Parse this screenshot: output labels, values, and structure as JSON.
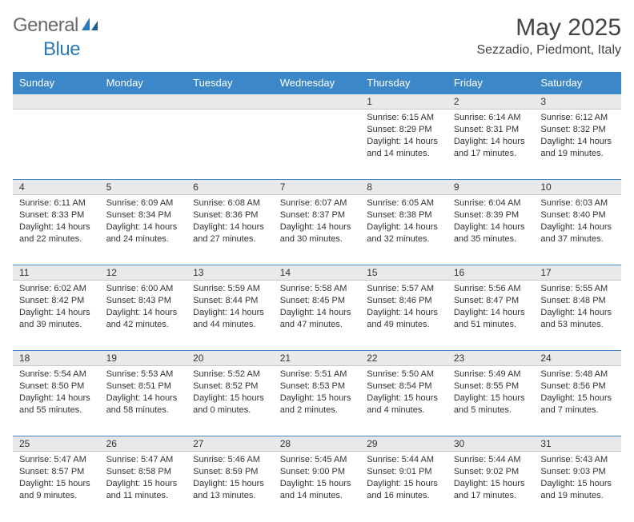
{
  "logo": {
    "text1": "General",
    "text2": "Blue"
  },
  "title": "May 2025",
  "location": "Sezzadio, Piedmont, Italy",
  "dayHeaders": [
    "Sunday",
    "Monday",
    "Tuesday",
    "Wednesday",
    "Thursday",
    "Friday",
    "Saturday"
  ],
  "colors": {
    "headerBg": "#3b87c8",
    "headerText": "#ffffff",
    "dayNumBg": "#e8e9ea",
    "border": "#3b87c8",
    "text": "#333333",
    "titleText": "#444444",
    "logoGray": "#6a6a6a",
    "logoBlue": "#2a7ab9"
  },
  "weeks": [
    [
      {
        "num": "",
        "lines": []
      },
      {
        "num": "",
        "lines": []
      },
      {
        "num": "",
        "lines": []
      },
      {
        "num": "",
        "lines": []
      },
      {
        "num": "1",
        "lines": [
          "Sunrise: 6:15 AM",
          "Sunset: 8:29 PM",
          "Daylight: 14 hours",
          "and 14 minutes."
        ]
      },
      {
        "num": "2",
        "lines": [
          "Sunrise: 6:14 AM",
          "Sunset: 8:31 PM",
          "Daylight: 14 hours",
          "and 17 minutes."
        ]
      },
      {
        "num": "3",
        "lines": [
          "Sunrise: 6:12 AM",
          "Sunset: 8:32 PM",
          "Daylight: 14 hours",
          "and 19 minutes."
        ]
      }
    ],
    [
      {
        "num": "4",
        "lines": [
          "Sunrise: 6:11 AM",
          "Sunset: 8:33 PM",
          "Daylight: 14 hours",
          "and 22 minutes."
        ]
      },
      {
        "num": "5",
        "lines": [
          "Sunrise: 6:09 AM",
          "Sunset: 8:34 PM",
          "Daylight: 14 hours",
          "and 24 minutes."
        ]
      },
      {
        "num": "6",
        "lines": [
          "Sunrise: 6:08 AM",
          "Sunset: 8:36 PM",
          "Daylight: 14 hours",
          "and 27 minutes."
        ]
      },
      {
        "num": "7",
        "lines": [
          "Sunrise: 6:07 AM",
          "Sunset: 8:37 PM",
          "Daylight: 14 hours",
          "and 30 minutes."
        ]
      },
      {
        "num": "8",
        "lines": [
          "Sunrise: 6:05 AM",
          "Sunset: 8:38 PM",
          "Daylight: 14 hours",
          "and 32 minutes."
        ]
      },
      {
        "num": "9",
        "lines": [
          "Sunrise: 6:04 AM",
          "Sunset: 8:39 PM",
          "Daylight: 14 hours",
          "and 35 minutes."
        ]
      },
      {
        "num": "10",
        "lines": [
          "Sunrise: 6:03 AM",
          "Sunset: 8:40 PM",
          "Daylight: 14 hours",
          "and 37 minutes."
        ]
      }
    ],
    [
      {
        "num": "11",
        "lines": [
          "Sunrise: 6:02 AM",
          "Sunset: 8:42 PM",
          "Daylight: 14 hours",
          "and 39 minutes."
        ]
      },
      {
        "num": "12",
        "lines": [
          "Sunrise: 6:00 AM",
          "Sunset: 8:43 PM",
          "Daylight: 14 hours",
          "and 42 minutes."
        ]
      },
      {
        "num": "13",
        "lines": [
          "Sunrise: 5:59 AM",
          "Sunset: 8:44 PM",
          "Daylight: 14 hours",
          "and 44 minutes."
        ]
      },
      {
        "num": "14",
        "lines": [
          "Sunrise: 5:58 AM",
          "Sunset: 8:45 PM",
          "Daylight: 14 hours",
          "and 47 minutes."
        ]
      },
      {
        "num": "15",
        "lines": [
          "Sunrise: 5:57 AM",
          "Sunset: 8:46 PM",
          "Daylight: 14 hours",
          "and 49 minutes."
        ]
      },
      {
        "num": "16",
        "lines": [
          "Sunrise: 5:56 AM",
          "Sunset: 8:47 PM",
          "Daylight: 14 hours",
          "and 51 minutes."
        ]
      },
      {
        "num": "17",
        "lines": [
          "Sunrise: 5:55 AM",
          "Sunset: 8:48 PM",
          "Daylight: 14 hours",
          "and 53 minutes."
        ]
      }
    ],
    [
      {
        "num": "18",
        "lines": [
          "Sunrise: 5:54 AM",
          "Sunset: 8:50 PM",
          "Daylight: 14 hours",
          "and 55 minutes."
        ]
      },
      {
        "num": "19",
        "lines": [
          "Sunrise: 5:53 AM",
          "Sunset: 8:51 PM",
          "Daylight: 14 hours",
          "and 58 minutes."
        ]
      },
      {
        "num": "20",
        "lines": [
          "Sunrise: 5:52 AM",
          "Sunset: 8:52 PM",
          "Daylight: 15 hours",
          "and 0 minutes."
        ]
      },
      {
        "num": "21",
        "lines": [
          "Sunrise: 5:51 AM",
          "Sunset: 8:53 PM",
          "Daylight: 15 hours",
          "and 2 minutes."
        ]
      },
      {
        "num": "22",
        "lines": [
          "Sunrise: 5:50 AM",
          "Sunset: 8:54 PM",
          "Daylight: 15 hours",
          "and 4 minutes."
        ]
      },
      {
        "num": "23",
        "lines": [
          "Sunrise: 5:49 AM",
          "Sunset: 8:55 PM",
          "Daylight: 15 hours",
          "and 5 minutes."
        ]
      },
      {
        "num": "24",
        "lines": [
          "Sunrise: 5:48 AM",
          "Sunset: 8:56 PM",
          "Daylight: 15 hours",
          "and 7 minutes."
        ]
      }
    ],
    [
      {
        "num": "25",
        "lines": [
          "Sunrise: 5:47 AM",
          "Sunset: 8:57 PM",
          "Daylight: 15 hours",
          "and 9 minutes."
        ]
      },
      {
        "num": "26",
        "lines": [
          "Sunrise: 5:47 AM",
          "Sunset: 8:58 PM",
          "Daylight: 15 hours",
          "and 11 minutes."
        ]
      },
      {
        "num": "27",
        "lines": [
          "Sunrise: 5:46 AM",
          "Sunset: 8:59 PM",
          "Daylight: 15 hours",
          "and 13 minutes."
        ]
      },
      {
        "num": "28",
        "lines": [
          "Sunrise: 5:45 AM",
          "Sunset: 9:00 PM",
          "Daylight: 15 hours",
          "and 14 minutes."
        ]
      },
      {
        "num": "29",
        "lines": [
          "Sunrise: 5:44 AM",
          "Sunset: 9:01 PM",
          "Daylight: 15 hours",
          "and 16 minutes."
        ]
      },
      {
        "num": "30",
        "lines": [
          "Sunrise: 5:44 AM",
          "Sunset: 9:02 PM",
          "Daylight: 15 hours",
          "and 17 minutes."
        ]
      },
      {
        "num": "31",
        "lines": [
          "Sunrise: 5:43 AM",
          "Sunset: 9:03 PM",
          "Daylight: 15 hours",
          "and 19 minutes."
        ]
      }
    ]
  ]
}
